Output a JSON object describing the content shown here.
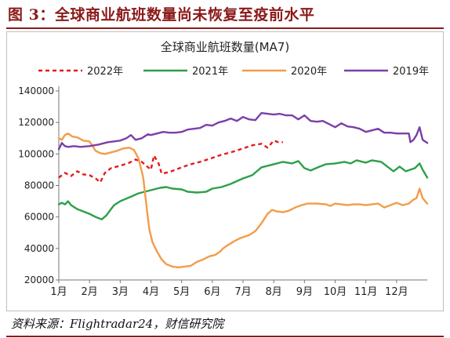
{
  "figure": {
    "label": "图 3：全球商业航班数量尚未恢复至疫前水平",
    "source": "资料来源：Flightradar24，财信研究院"
  },
  "colors": {
    "2022": "#e41a1c",
    "2021": "#2ca048",
    "2020": "#f39c4a",
    "2019": "#7b3fa8",
    "title_bar": "#8b1a1a"
  },
  "chart_data": {
    "type": "line",
    "title": "全球商业航班数量(MA7)",
    "xlabel": "",
    "ylabel": "",
    "ylim": [
      20000,
      140000
    ],
    "yticks": [
      20000,
      40000,
      60000,
      80000,
      100000,
      120000,
      140000
    ],
    "xlim": [
      0,
      12
    ],
    "xticks": [
      "1月",
      "2月",
      "3月",
      "4月",
      "5月",
      "6月",
      "7月",
      "8月",
      "9月",
      "10月",
      "11月",
      "12月"
    ],
    "grid": false,
    "legend_position": "top",
    "series": [
      {
        "name": "2022年",
        "style": "dashed",
        "points": [
          [
            0.0,
            85000
          ],
          [
            0.2,
            88000
          ],
          [
            0.4,
            86000
          ],
          [
            0.6,
            89000
          ],
          [
            0.8,
            87000
          ],
          [
            1.0,
            86500
          ],
          [
            1.2,
            84500
          ],
          [
            1.35,
            82000
          ],
          [
            1.5,
            88000
          ],
          [
            1.7,
            91000
          ],
          [
            2.0,
            92500
          ],
          [
            2.3,
            94500
          ],
          [
            2.5,
            96500
          ],
          [
            2.7,
            95000
          ],
          [
            3.0,
            90000
          ],
          [
            3.1,
            99000
          ],
          [
            3.25,
            94000
          ],
          [
            3.35,
            87500
          ],
          [
            3.6,
            88500
          ],
          [
            4.0,
            91500
          ],
          [
            4.3,
            93500
          ],
          [
            4.6,
            95000
          ],
          [
            5.0,
            97500
          ],
          [
            5.3,
            99500
          ],
          [
            5.6,
            101000
          ],
          [
            6.0,
            103500
          ],
          [
            6.3,
            105500
          ],
          [
            6.6,
            106500
          ],
          [
            6.8,
            104000
          ],
          [
            7.0,
            108500
          ],
          [
            7.15,
            107500
          ],
          [
            7.3,
            107500
          ]
        ]
      },
      {
        "name": "2021年",
        "style": "solid",
        "points": [
          [
            0.0,
            68000
          ],
          [
            0.1,
            69000
          ],
          [
            0.2,
            68000
          ],
          [
            0.3,
            70000
          ],
          [
            0.4,
            67500
          ],
          [
            0.6,
            65000
          ],
          [
            0.8,
            63500
          ],
          [
            1.0,
            62000
          ],
          [
            1.2,
            60000
          ],
          [
            1.4,
            58500
          ],
          [
            1.55,
            61000
          ],
          [
            1.7,
            65000
          ],
          [
            1.8,
            67500
          ],
          [
            2.0,
            70000
          ],
          [
            2.3,
            72500
          ],
          [
            2.6,
            75000
          ],
          [
            3.0,
            77000
          ],
          [
            3.3,
            78500
          ],
          [
            3.5,
            79000
          ],
          [
            3.7,
            78000
          ],
          [
            4.0,
            77500
          ],
          [
            4.2,
            76000
          ],
          [
            4.5,
            75500
          ],
          [
            4.8,
            76000
          ],
          [
            5.0,
            78000
          ],
          [
            5.3,
            79000
          ],
          [
            5.6,
            81000
          ],
          [
            6.0,
            84500
          ],
          [
            6.3,
            86500
          ],
          [
            6.6,
            91500
          ],
          [
            7.0,
            93500
          ],
          [
            7.3,
            95000
          ],
          [
            7.6,
            94000
          ],
          [
            7.8,
            95500
          ],
          [
            8.0,
            91000
          ],
          [
            8.2,
            89500
          ],
          [
            8.5,
            92000
          ],
          [
            8.7,
            93500
          ],
          [
            9.0,
            94000
          ],
          [
            9.3,
            95000
          ],
          [
            9.5,
            94000
          ],
          [
            9.7,
            96000
          ],
          [
            10.0,
            94500
          ],
          [
            10.2,
            96000
          ],
          [
            10.5,
            95000
          ],
          [
            10.7,
            92000
          ],
          [
            10.9,
            89000
          ],
          [
            11.1,
            92000
          ],
          [
            11.3,
            89000
          ],
          [
            11.6,
            91000
          ],
          [
            11.75,
            94000
          ],
          [
            11.85,
            90000
          ],
          [
            12.0,
            85000
          ]
        ]
      },
      {
        "name": "2020年",
        "style": "solid",
        "points": [
          [
            0.0,
            110000
          ],
          [
            0.1,
            109000
          ],
          [
            0.2,
            112000
          ],
          [
            0.3,
            113000
          ],
          [
            0.45,
            111000
          ],
          [
            0.6,
            110500
          ],
          [
            0.8,
            108500
          ],
          [
            1.0,
            108000
          ],
          [
            1.1,
            105000
          ],
          [
            1.2,
            102000
          ],
          [
            1.35,
            100500
          ],
          [
            1.5,
            100000
          ],
          [
            1.7,
            101000
          ],
          [
            1.9,
            102000
          ],
          [
            2.1,
            103500
          ],
          [
            2.3,
            104000
          ],
          [
            2.45,
            102500
          ],
          [
            2.6,
            97000
          ],
          [
            2.75,
            85000
          ],
          [
            2.85,
            68000
          ],
          [
            2.95,
            52000
          ],
          [
            3.05,
            44000
          ],
          [
            3.2,
            38000
          ],
          [
            3.35,
            33000
          ],
          [
            3.5,
            30000
          ],
          [
            3.7,
            28500
          ],
          [
            3.9,
            28000
          ],
          [
            4.1,
            28500
          ],
          [
            4.3,
            29000
          ],
          [
            4.5,
            31500
          ],
          [
            4.7,
            33000
          ],
          [
            4.9,
            35000
          ],
          [
            5.1,
            36000
          ],
          [
            5.25,
            38000
          ],
          [
            5.35,
            40000
          ],
          [
            5.5,
            42000
          ],
          [
            5.7,
            44500
          ],
          [
            5.9,
            46500
          ],
          [
            6.2,
            48500
          ],
          [
            6.4,
            51000
          ],
          [
            6.6,
            56000
          ],
          [
            6.8,
            62000
          ],
          [
            6.95,
            64500
          ],
          [
            7.1,
            63500
          ],
          [
            7.3,
            63000
          ],
          [
            7.5,
            64000
          ],
          [
            7.7,
            66000
          ],
          [
            7.9,
            67500
          ],
          [
            8.1,
            68500
          ],
          [
            8.4,
            68500
          ],
          [
            8.7,
            68000
          ],
          [
            8.85,
            67000
          ],
          [
            9.0,
            68500
          ],
          [
            9.2,
            68000
          ],
          [
            9.4,
            67500
          ],
          [
            9.6,
            68000
          ],
          [
            9.8,
            68000
          ],
          [
            10.0,
            67500
          ],
          [
            10.2,
            68000
          ],
          [
            10.4,
            68500
          ],
          [
            10.6,
            66000
          ],
          [
            10.8,
            67500
          ],
          [
            11.0,
            69000
          ],
          [
            11.2,
            67500
          ],
          [
            11.4,
            68500
          ],
          [
            11.55,
            71000
          ],
          [
            11.65,
            72000
          ],
          [
            11.75,
            78000
          ],
          [
            11.85,
            72000
          ],
          [
            12.0,
            68500
          ]
        ]
      },
      {
        "name": "2019年",
        "style": "solid",
        "points": [
          [
            0.0,
            103000
          ],
          [
            0.1,
            107000
          ],
          [
            0.2,
            105000
          ],
          [
            0.3,
            104500
          ],
          [
            0.5,
            105000
          ],
          [
            0.7,
            104500
          ],
          [
            1.0,
            105000
          ],
          [
            1.3,
            106000
          ],
          [
            1.6,
            107500
          ],
          [
            2.0,
            108500
          ],
          [
            2.2,
            110000
          ],
          [
            2.35,
            112000
          ],
          [
            2.5,
            109000
          ],
          [
            2.7,
            110000
          ],
          [
            2.9,
            112500
          ],
          [
            3.0,
            112000
          ],
          [
            3.2,
            113000
          ],
          [
            3.4,
            114000
          ],
          [
            3.6,
            113500
          ],
          [
            3.8,
            113500
          ],
          [
            4.0,
            114000
          ],
          [
            4.2,
            115500
          ],
          [
            4.4,
            116000
          ],
          [
            4.6,
            116500
          ],
          [
            4.8,
            118500
          ],
          [
            5.0,
            118000
          ],
          [
            5.2,
            120000
          ],
          [
            5.4,
            121000
          ],
          [
            5.6,
            122500
          ],
          [
            5.8,
            121000
          ],
          [
            6.0,
            123500
          ],
          [
            6.2,
            122000
          ],
          [
            6.4,
            121500
          ],
          [
            6.6,
            126000
          ],
          [
            6.8,
            125500
          ],
          [
            7.0,
            125000
          ],
          [
            7.2,
            125500
          ],
          [
            7.4,
            124500
          ],
          [
            7.6,
            124500
          ],
          [
            7.8,
            122000
          ],
          [
            8.0,
            124500
          ],
          [
            8.2,
            121000
          ],
          [
            8.4,
            120500
          ],
          [
            8.6,
            121000
          ],
          [
            8.8,
            119000
          ],
          [
            9.0,
            117000
          ],
          [
            9.2,
            119500
          ],
          [
            9.4,
            117500
          ],
          [
            9.6,
            117000
          ],
          [
            9.8,
            116000
          ],
          [
            10.0,
            114000
          ],
          [
            10.2,
            115000
          ],
          [
            10.4,
            116000
          ],
          [
            10.6,
            113500
          ],
          [
            10.8,
            113500
          ],
          [
            11.0,
            113000
          ],
          [
            11.2,
            113000
          ],
          [
            11.4,
            113000
          ],
          [
            11.45,
            107500
          ],
          [
            11.55,
            109000
          ],
          [
            11.65,
            112000
          ],
          [
            11.75,
            117000
          ],
          [
            11.85,
            109000
          ],
          [
            12.0,
            107000
          ]
        ]
      }
    ]
  }
}
